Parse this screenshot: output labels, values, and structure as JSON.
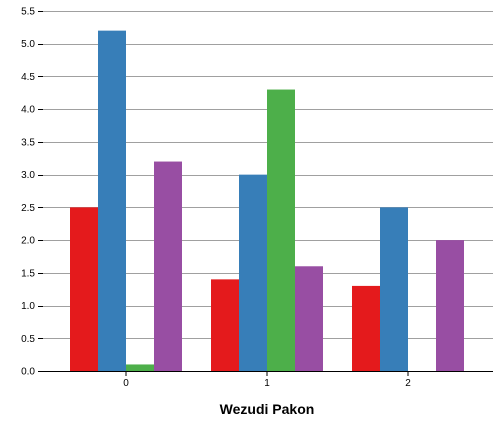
{
  "chart_data": {
    "type": "bar",
    "title": "",
    "xlabel": "Wezudi Pakon",
    "ylabel": "",
    "categories": [
      "0",
      "1",
      "2"
    ],
    "ylim": [
      0,
      5.5
    ],
    "yticks": [
      "0.0",
      "0.5",
      "1.0",
      "1.5",
      "2.0",
      "2.5",
      "3.0",
      "3.5",
      "4.0",
      "4.5",
      "5.0",
      "5.5"
    ],
    "grid": true,
    "legend": "none",
    "series": [
      {
        "color": "#e41a1c",
        "values": [
          2.5,
          1.4,
          1.3
        ]
      },
      {
        "color": "#377eb8",
        "values": [
          5.2,
          3.0,
          2.5
        ]
      },
      {
        "color": "#4daf4a",
        "values": [
          0.1,
          4.3,
          0
        ]
      },
      {
        "color": "#984ea3",
        "values": [
          3.2,
          1.6,
          2.0
        ]
      }
    ]
  }
}
